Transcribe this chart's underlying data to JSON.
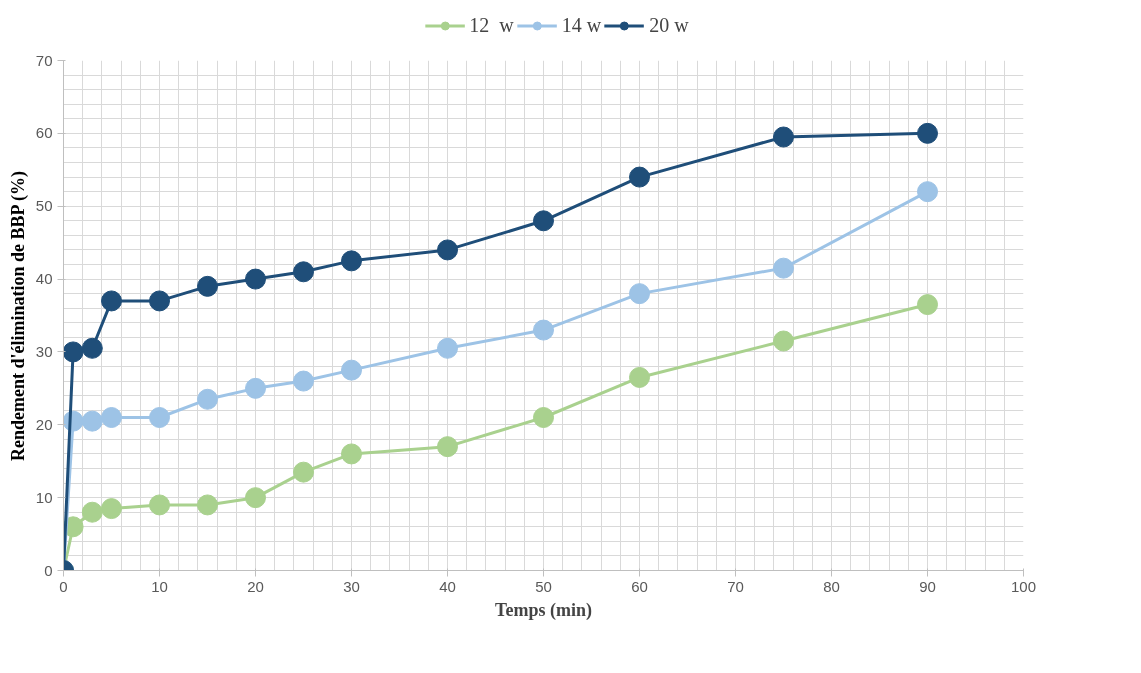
{
  "chart_data": {
    "type": "line",
    "xlabel": "Temps (min)",
    "ylabel": "Rendement d'élimination de BBP (%)",
    "x": [
      0,
      1,
      3,
      5,
      10,
      15,
      20,
      25,
      30,
      40,
      50,
      60,
      75,
      90
    ],
    "series": [
      {
        "name": "12  w",
        "color": "#a9d18e",
        "values": [
          0,
          6,
          8,
          8.5,
          9,
          9,
          10,
          13.5,
          16,
          17,
          21,
          26.5,
          31.5,
          36.5
        ]
      },
      {
        "name": "14 w",
        "color": "#9dc3e6",
        "values": [
          0,
          20.5,
          20.5,
          21,
          21,
          23.5,
          25,
          26,
          27.5,
          30.5,
          33,
          38,
          41.5,
          52
        ]
      },
      {
        "name": "20 w",
        "color": "#1f4e79",
        "values": [
          0,
          30,
          30.5,
          37,
          37,
          39,
          40,
          41,
          42.5,
          44,
          48,
          54,
          59.5,
          60
        ]
      }
    ],
    "xlim": [
      0,
      100
    ],
    "ylim": [
      0,
      70
    ],
    "xticks": [
      0,
      10,
      20,
      30,
      40,
      50,
      60,
      70,
      80,
      90,
      100
    ],
    "yticks": [
      0,
      10,
      20,
      30,
      40,
      50,
      60,
      70
    ],
    "grid": true,
    "legend": "top",
    "marker": "circle",
    "line_style": "solid"
  }
}
